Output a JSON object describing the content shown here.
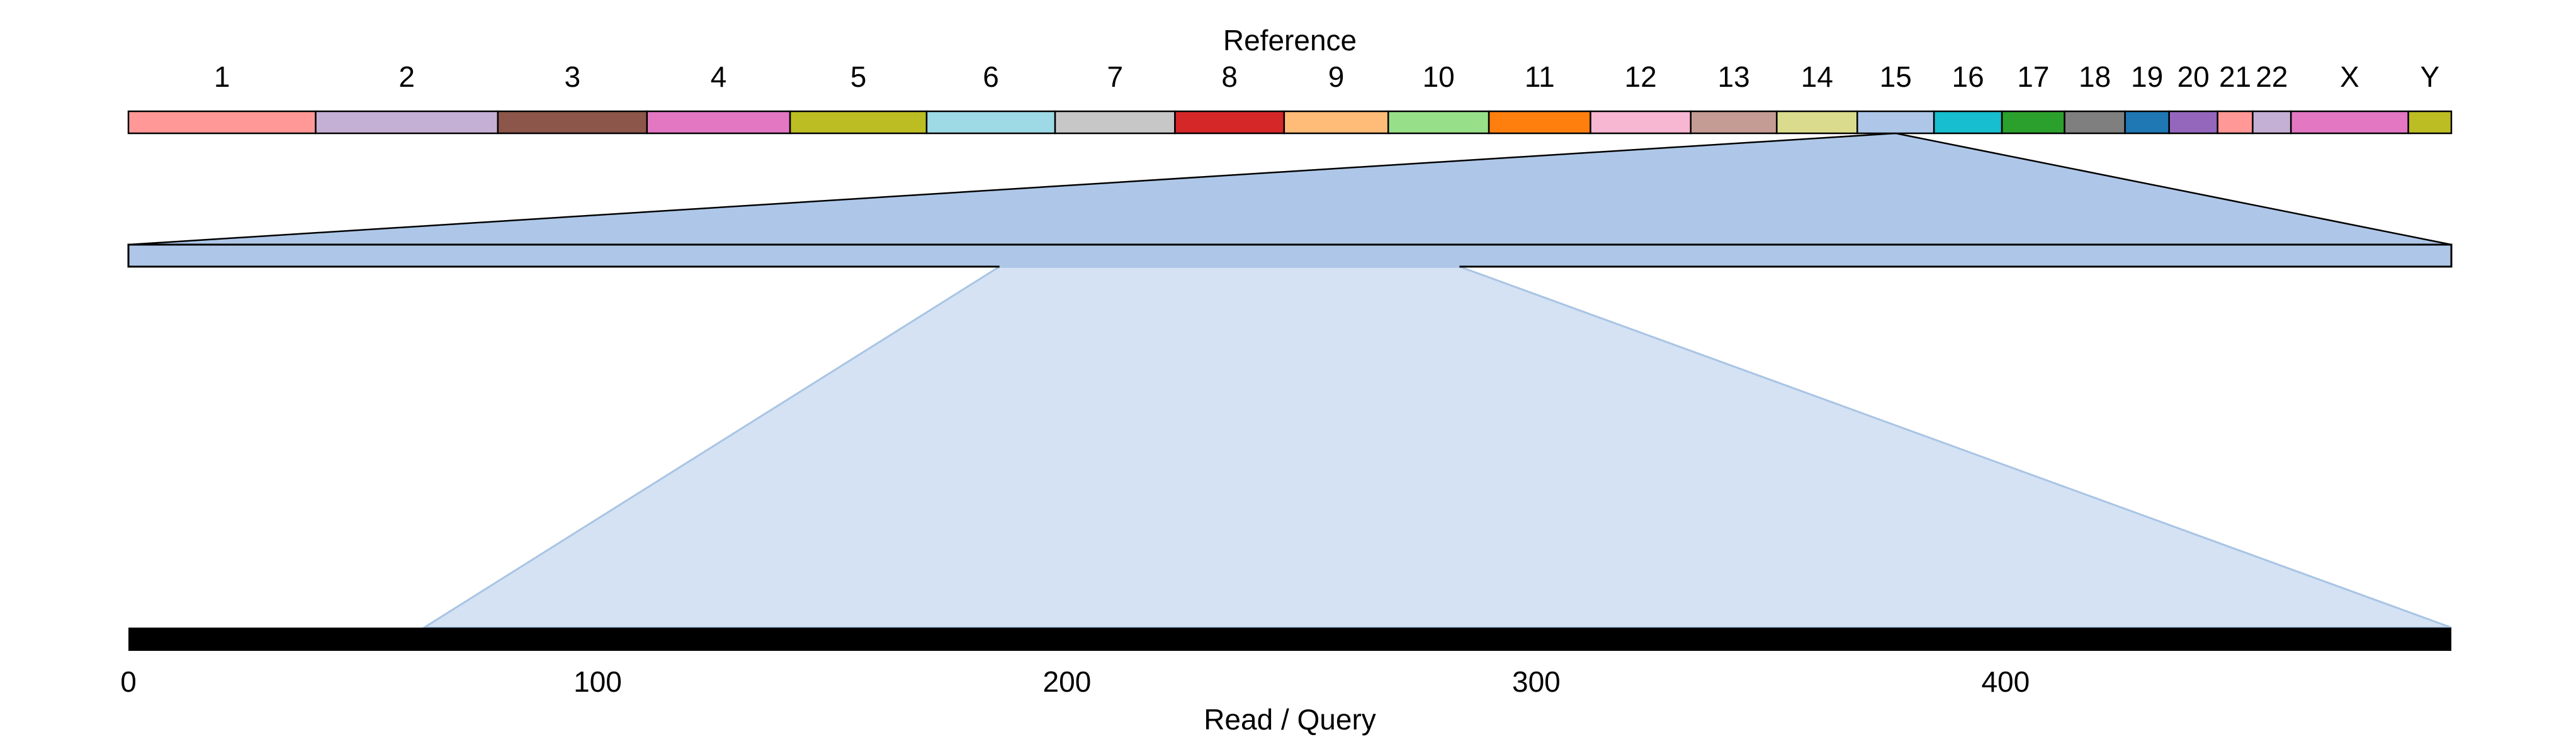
{
  "reference_title": "Reference",
  "query_title": "Read / Query",
  "chromosomes": [
    {
      "name": "1",
      "length": 248.96,
      "color": "#ff9896"
    },
    {
      "name": "2",
      "length": 242.19,
      "color": "#c5b0d5"
    },
    {
      "name": "3",
      "length": 198.3,
      "color": "#8c564b"
    },
    {
      "name": "4",
      "length": 190.21,
      "color": "#e377c2"
    },
    {
      "name": "5",
      "length": 181.54,
      "color": "#bcbd22"
    },
    {
      "name": "6",
      "length": 170.81,
      "color": "#9edae5"
    },
    {
      "name": "7",
      "length": 159.35,
      "color": "#c7c7c7"
    },
    {
      "name": "8",
      "length": 145.14,
      "color": "#d62728"
    },
    {
      "name": "9",
      "length": 138.39,
      "color": "#ffbb78"
    },
    {
      "name": "10",
      "length": 133.8,
      "color": "#98df8a"
    },
    {
      "name": "11",
      "length": 135.09,
      "color": "#ff7f0e"
    },
    {
      "name": "12",
      "length": 133.28,
      "color": "#f7b6d2"
    },
    {
      "name": "13",
      "length": 114.36,
      "color": "#c49c94"
    },
    {
      "name": "14",
      "length": 107.04,
      "color": "#dbdb8d"
    },
    {
      "name": "15",
      "length": 101.99,
      "color": "#aec7e8"
    },
    {
      "name": "16",
      "length": 90.34,
      "color": "#17becf"
    },
    {
      "name": "17",
      "length": 83.26,
      "color": "#2ca02c"
    },
    {
      "name": "18",
      "length": 80.37,
      "color": "#7f7f7f"
    },
    {
      "name": "19",
      "length": 58.62,
      "color": "#1f77b4"
    },
    {
      "name": "20",
      "length": 64.44,
      "color": "#9467bd"
    },
    {
      "name": "21",
      "length": 46.71,
      "color": "#ff9896"
    },
    {
      "name": "22",
      "length": 50.82,
      "color": "#c5b0d5"
    },
    {
      "name": "X",
      "length": 156.04,
      "color": "#e377c2"
    },
    {
      "name": "Y",
      "length": 57.23,
      "color": "#bcbd22"
    }
  ],
  "highlighted_chromosome": "15",
  "highlight_fraction": 0.5,
  "zoom_region": {
    "start_fraction": 0.375,
    "end_fraction": 0.573
  },
  "query": {
    "length": 495,
    "ticks": [
      0,
      100,
      200,
      300,
      400
    ],
    "aligned_start": 63,
    "aligned_end": 495,
    "bar_color": "#000000"
  },
  "colors": {
    "zoom_fill": "#aec7e8",
    "alignment_fill": "#d4e2f3",
    "alignment_stroke": "#a9c4e4",
    "outline": "#000000"
  }
}
